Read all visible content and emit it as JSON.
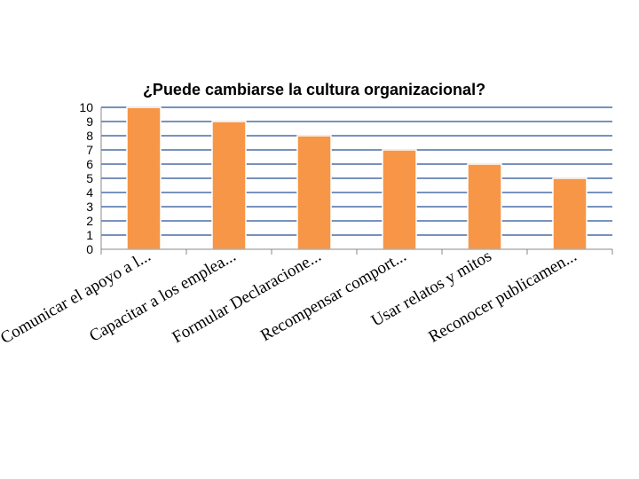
{
  "chart_data": {
    "type": "bar",
    "title": "¿Puede cambiarse la cultura organizacional?",
    "categories": [
      "Comunicar el apoyo a l...",
      "Capacitar a los emplea...",
      "Formular Declaracione...",
      "Recompensar comport...",
      "Usar relatos y mitos",
      "Reconocer publicamen..."
    ],
    "values": [
      10,
      9,
      8,
      7,
      6,
      5
    ],
    "yticks": [
      "0",
      "1",
      "2",
      "3",
      "4",
      "5",
      "6",
      "7",
      "8",
      "9",
      "10"
    ],
    "ylim": [
      0,
      10
    ],
    "grid": true,
    "legend": "none",
    "colors": {
      "bar": "#f79646",
      "bar_edge": "#ffffff",
      "grid": "#4a6fa5",
      "axis": "#888888"
    }
  }
}
